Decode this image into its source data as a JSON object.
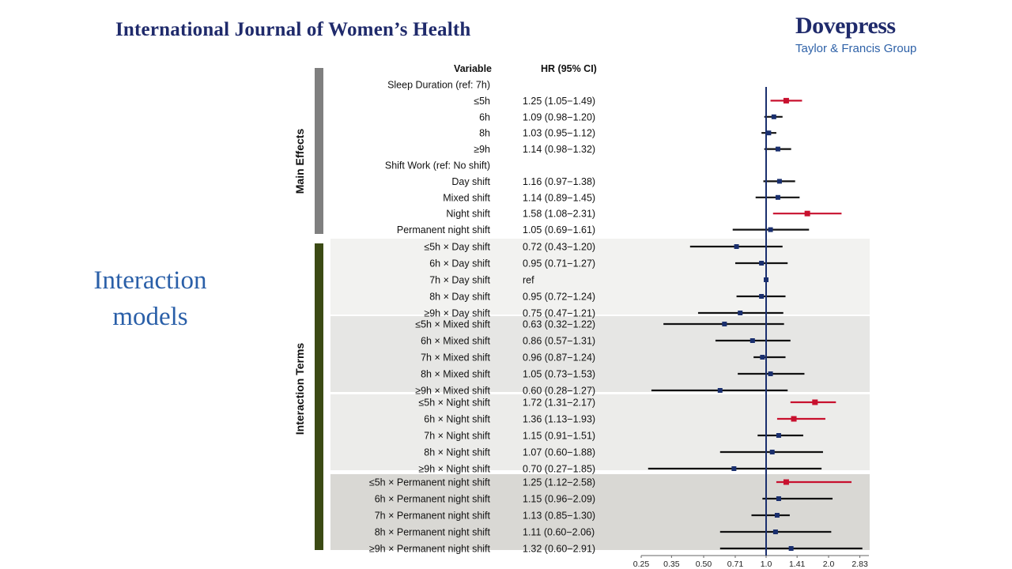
{
  "header": {
    "journal": "International Journal of Women’s Health",
    "brand": "Dovepress",
    "brand_sub": "Taylor & Francis Group"
  },
  "slide_title": [
    "Interaction",
    "models"
  ],
  "colors": {
    "significant": "#c8102e",
    "point": "#1a2f6e",
    "ref_line": "#1a2f6e",
    "main_bar": "#7f7f7f",
    "interaction_bar": "#3b4a14"
  },
  "chart_data": {
    "type": "forest",
    "columns": {
      "variable": "Variable",
      "hr": "HR (95% CI)"
    },
    "x_scale": "log",
    "x_ticks": [
      0.25,
      0.35,
      0.5,
      0.71,
      1.0,
      1.41,
      2.0,
      2.83
    ],
    "x_tick_labels": [
      "0.25",
      "0.35",
      "0.50",
      "0.71",
      "1.0",
      "1.41",
      "2.0",
      "2.83"
    ],
    "xlim": [
      0.25,
      2.91
    ],
    "reference": 1.0,
    "groups": [
      {
        "label": "Main Effects",
        "rows": [
          {
            "label": "Sleep Duration (ref: 7h)",
            "header": true
          },
          {
            "label": "≤5h",
            "hr_text": "1.25 (1.05−1.49)",
            "hr": 1.25,
            "lo": 1.05,
            "hi": 1.49,
            "sig": true
          },
          {
            "label": "6h",
            "hr_text": "1.09 (0.98−1.20)",
            "hr": 1.09,
            "lo": 0.98,
            "hi": 1.2,
            "sig": false
          },
          {
            "label": "8h",
            "hr_text": "1.03 (0.95−1.12)",
            "hr": 1.03,
            "lo": 0.95,
            "hi": 1.12,
            "sig": false
          },
          {
            "label": "≥9h",
            "hr_text": "1.14 (0.98−1.32)",
            "hr": 1.14,
            "lo": 0.98,
            "hi": 1.32,
            "sig": false
          },
          {
            "label": "Shift Work (ref: No shift)",
            "header": true
          },
          {
            "label": "Day shift",
            "hr_text": "1.16 (0.97−1.38)",
            "hr": 1.16,
            "lo": 0.97,
            "hi": 1.38,
            "sig": false
          },
          {
            "label": "Mixed shift",
            "hr_text": "1.14 (0.89−1.45)",
            "hr": 1.14,
            "lo": 0.89,
            "hi": 1.45,
            "sig": false
          },
          {
            "label": "Night shift",
            "hr_text": "1.58 (1.08−2.31)",
            "hr": 1.58,
            "lo": 1.08,
            "hi": 2.31,
            "sig": true
          },
          {
            "label": "Permanent night shift",
            "hr_text": "1.05 (0.69−1.61)",
            "hr": 1.05,
            "lo": 0.69,
            "hi": 1.61,
            "sig": false
          }
        ]
      },
      {
        "label": "Interaction Terms",
        "blocks": [
          {
            "rows": [
              {
                "label": "≤5h × Day shift",
                "hr_text": "0.72 (0.43−1.20)",
                "hr": 0.72,
                "lo": 0.43,
                "hi": 1.2,
                "sig": false
              },
              {
                "label": "6h × Day shift",
                "hr_text": "0.95 (0.71−1.27)",
                "hr": 0.95,
                "lo": 0.71,
                "hi": 1.27,
                "sig": false
              },
              {
                "label": "7h × Day shift",
                "hr_text": "ref",
                "hr": 1.0,
                "ref": true
              },
              {
                "label": "8h × Day shift",
                "hr_text": "0.95 (0.72−1.24)",
                "hr": 0.95,
                "lo": 0.72,
                "hi": 1.24,
                "sig": false
              },
              {
                "label": "≥9h × Day shift",
                "hr_text": "0.75 (0.47−1.21)",
                "hr": 0.75,
                "lo": 0.47,
                "hi": 1.21,
                "sig": false
              }
            ]
          },
          {
            "rows": [
              {
                "label": "≤5h × Mixed shift",
                "hr_text": "0.63 (0.32−1.22)",
                "hr": 0.63,
                "lo": 0.32,
                "hi": 1.22,
                "sig": false
              },
              {
                "label": "6h × Mixed shift",
                "hr_text": "0.86 (0.57−1.31)",
                "hr": 0.86,
                "lo": 0.57,
                "hi": 1.31,
                "sig": false
              },
              {
                "label": "7h × Mixed shift",
                "hr_text": "0.96 (0.87−1.24)",
                "hr": 0.96,
                "lo": 0.87,
                "hi": 1.24,
                "sig": false
              },
              {
                "label": "8h × Mixed shift",
                "hr_text": "1.05 (0.73−1.53)",
                "hr": 1.05,
                "lo": 0.73,
                "hi": 1.53,
                "sig": false
              },
              {
                "label": "≥9h × Mixed shift",
                "hr_text": "0.60 (0.28−1.27)",
                "hr": 0.6,
                "lo": 0.28,
                "hi": 1.27,
                "sig": false
              }
            ]
          },
          {
            "rows": [
              {
                "label": "≤5h × Night shift",
                "hr_text": "1.72 (1.31−2.17)",
                "hr": 1.72,
                "lo": 1.31,
                "hi": 2.17,
                "sig": true
              },
              {
                "label": "6h × Night shift",
                "hr_text": "1.36 (1.13−1.93)",
                "hr": 1.36,
                "lo": 1.13,
                "hi": 1.93,
                "sig": true
              },
              {
                "label": "7h × Night shift",
                "hr_text": "1.15 (0.91−1.51)",
                "hr": 1.15,
                "lo": 0.91,
                "hi": 1.51,
                "sig": false
              },
              {
                "label": "8h × Night shift",
                "hr_text": "1.07 (0.60−1.88)",
                "hr": 1.07,
                "lo": 0.6,
                "hi": 1.88,
                "sig": false
              },
              {
                "label": "≥9h × Night shift",
                "hr_text": "0.70 (0.27−1.85)",
                "hr": 0.7,
                "lo": 0.27,
                "hi": 1.85,
                "sig": false
              }
            ]
          },
          {
            "rows": [
              {
                "label": "≤5h × Permanent night shift",
                "hr_text": "1.25 (1.12−2.58)",
                "hr": 1.25,
                "lo": 1.12,
                "hi": 2.58,
                "sig": true
              },
              {
                "label": "6h × Permanent night shift",
                "hr_text": "1.15 (0.96−2.09)",
                "hr": 1.15,
                "lo": 0.96,
                "hi": 2.09,
                "sig": false
              },
              {
                "label": "7h × Permanent night shift",
                "hr_text": "1.13 (0.85−1.30)",
                "hr": 1.13,
                "lo": 0.85,
                "hi": 1.3,
                "sig": false
              },
              {
                "label": "8h × Permanent night shift",
                "hr_text": "1.11 (0.60−2.06)",
                "hr": 1.11,
                "lo": 0.6,
                "hi": 2.06,
                "sig": false
              },
              {
                "label": "≥9h × Permanent night shift",
                "hr_text": "1.32 (0.60−2.91)",
                "hr": 1.32,
                "lo": 0.6,
                "hi": 2.91,
                "sig": false
              }
            ]
          }
        ]
      }
    ]
  }
}
